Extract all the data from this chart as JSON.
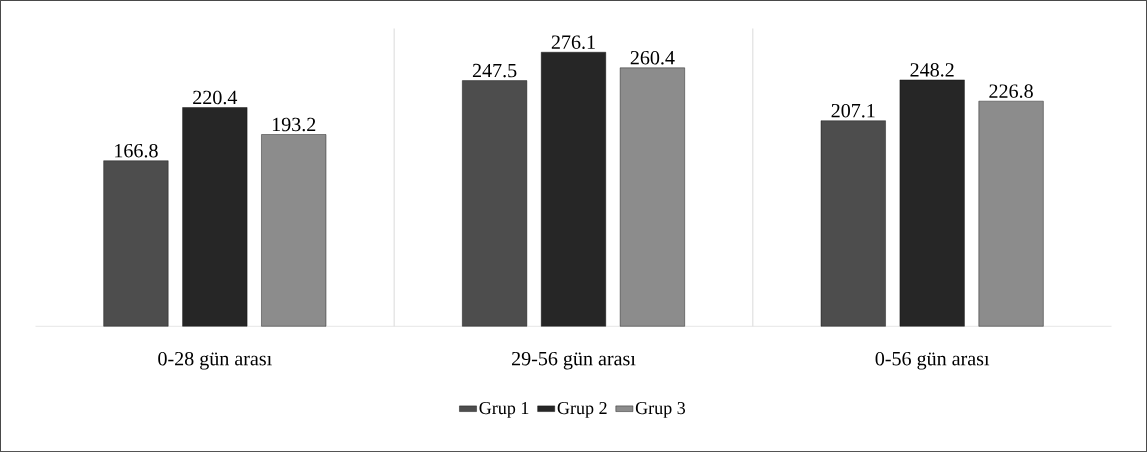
{
  "chart_data": {
    "type": "bar",
    "categories": [
      "0-28 gün arası",
      "29-56 gün arası",
      "0-56 gün arası"
    ],
    "series": [
      {
        "name": "Grup 1",
        "color": "#4d4d4d",
        "values": [
          166.8,
          247.5,
          207.1
        ]
      },
      {
        "name": "Grup 2",
        "color": "#262626",
        "values": [
          220.4,
          276.1,
          248.2
        ]
      },
      {
        "name": "Grup 3",
        "color": "#8c8c8c",
        "values": [
          193.2,
          260.4,
          226.8
        ]
      }
    ],
    "ylim": [
      0,
      300
    ],
    "data_labels": true,
    "legend": "bottom"
  }
}
